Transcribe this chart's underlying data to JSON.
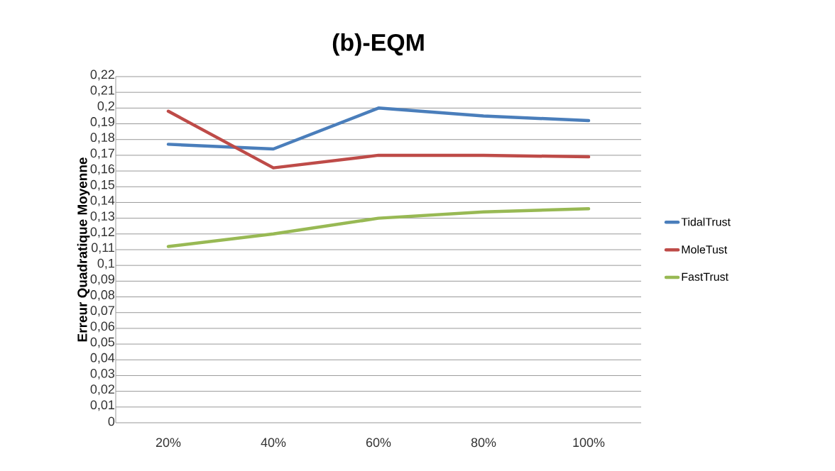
{
  "chart_data": {
    "type": "line",
    "title": "(b)-EQM",
    "ylabel": "Erreur Quadratique Moyenne",
    "categories": [
      "20%",
      "40%",
      "60%",
      "80%",
      "100%"
    ],
    "series": [
      {
        "name": "TidalTrust",
        "color": "#4a7ebb",
        "values": [
          0.177,
          0.174,
          0.2,
          0.195,
          0.192
        ]
      },
      {
        "name": "MoleTust",
        "color": "#be4b48",
        "values": [
          0.198,
          0.162,
          0.17,
          0.17,
          0.169
        ]
      },
      {
        "name": "FastTrust",
        "color": "#98b954",
        "values": [
          0.112,
          0.12,
          0.13,
          0.134,
          0.136
        ]
      }
    ],
    "ylim": [
      0,
      0.22
    ],
    "yticks": [
      {
        "value": 0,
        "label": "0"
      },
      {
        "value": 0.01,
        "label": "0,01"
      },
      {
        "value": 0.02,
        "label": "0,02"
      },
      {
        "value": 0.03,
        "label": "0,03"
      },
      {
        "value": 0.04,
        "label": "0,04"
      },
      {
        "value": 0.05,
        "label": "0,05"
      },
      {
        "value": 0.06,
        "label": "0,06"
      },
      {
        "value": 0.07,
        "label": "0,07"
      },
      {
        "value": 0.08,
        "label": "0,08"
      },
      {
        "value": 0.09,
        "label": "0,09"
      },
      {
        "value": 0.1,
        "label": "0,1"
      },
      {
        "value": 0.11,
        "label": "0,11"
      },
      {
        "value": 0.12,
        "label": "0,12"
      },
      {
        "value": 0.13,
        "label": "0,13"
      },
      {
        "value": 0.14,
        "label": "0,14"
      },
      {
        "value": 0.15,
        "label": "0,15"
      },
      {
        "value": 0.16,
        "label": "0,16"
      },
      {
        "value": 0.17,
        "label": "0,17"
      },
      {
        "value": 0.18,
        "label": "0,18"
      },
      {
        "value": 0.19,
        "label": "0,19"
      },
      {
        "value": 0.2,
        "label": "0,2"
      },
      {
        "value": 0.21,
        "label": "0,21"
      },
      {
        "value": 0.22,
        "label": "0,22"
      }
    ],
    "grid": "y",
    "legend": "right",
    "marker": "none",
    "line_style": "solid"
  }
}
